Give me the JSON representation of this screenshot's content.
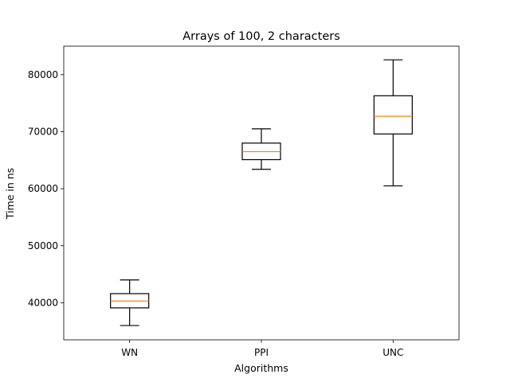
{
  "chart_data": {
    "type": "box",
    "title": "Arrays of 100, 2 characters",
    "xlabel": "Algorithms",
    "ylabel": "Time in ns",
    "ylim": [
      33500,
      85000
    ],
    "yticks": [
      40000,
      50000,
      60000,
      70000,
      80000
    ],
    "categories": [
      "WN",
      "PPI",
      "UNC"
    ],
    "boxes": [
      {
        "label": "WN",
        "whisker_low": 36000,
        "q1": 39100,
        "median": 40300,
        "q3": 41600,
        "whisker_high": 44000
      },
      {
        "label": "PPI",
        "whisker_low": 63400,
        "q1": 65100,
        "median": 66500,
        "q3": 68000,
        "whisker_high": 70500
      },
      {
        "label": "UNC",
        "whisker_low": 60500,
        "q1": 69600,
        "median": 72700,
        "q3": 76300,
        "whisker_high": 82600
      }
    ],
    "median_color": "#ff7f0e",
    "box_color": "#000000",
    "grid": false,
    "legend": "none"
  }
}
